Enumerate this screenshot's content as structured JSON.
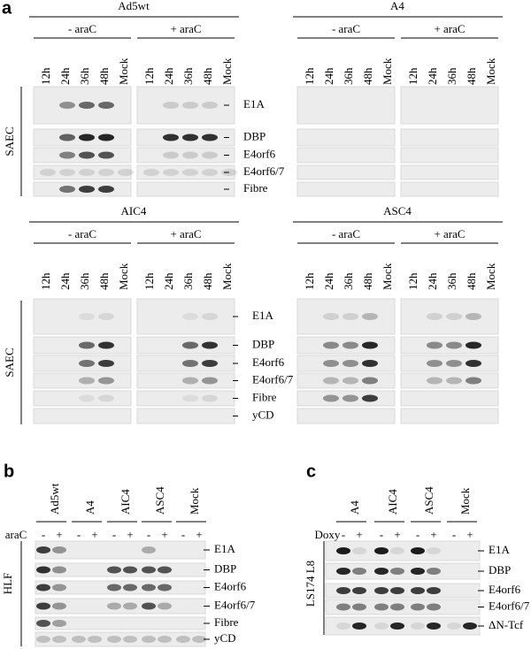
{
  "panel_a": {
    "label": "a",
    "cell_line": "SAEC",
    "lanes": [
      "12h",
      "24h",
      "36h",
      "48h",
      "Mock"
    ],
    "conditions": [
      "- araC",
      "+ araC"
    ],
    "top": {
      "constructs": [
        "Ad5wt",
        "A4"
      ],
      "proteins": [
        "E1A",
        "DBP",
        "E4orf6",
        "E4orf6/7",
        "Fibre"
      ]
    },
    "bottom": {
      "constructs": [
        "AIC4",
        "ASC4"
      ],
      "proteins": [
        "E1A",
        "DBP",
        "E4orf6",
        "E4orf6/7",
        "Fibre",
        "yCD"
      ]
    }
  },
  "panel_b": {
    "label": "b",
    "cell_line": "HLF",
    "treatment": "araC",
    "signs": [
      "-",
      "+"
    ],
    "groups": [
      "Ad5wt",
      "A4",
      "AIC4",
      "ASC4",
      "Mock"
    ],
    "proteins": [
      "E1A",
      "DBP",
      "E4orf6",
      "E4orf6/7",
      "Fibre",
      "yCD"
    ]
  },
  "panel_c": {
    "label": "c",
    "cell_line": "LS174 L8",
    "treatment": "Doxy",
    "signs": [
      "-",
      "+"
    ],
    "groups": [
      "A4",
      "AIC4",
      "ASC4",
      "Mock"
    ],
    "proteins": [
      "E1A",
      "DBP",
      "E4orf6",
      "E4orf6/7",
      "ΔN-Tcf"
    ]
  }
}
